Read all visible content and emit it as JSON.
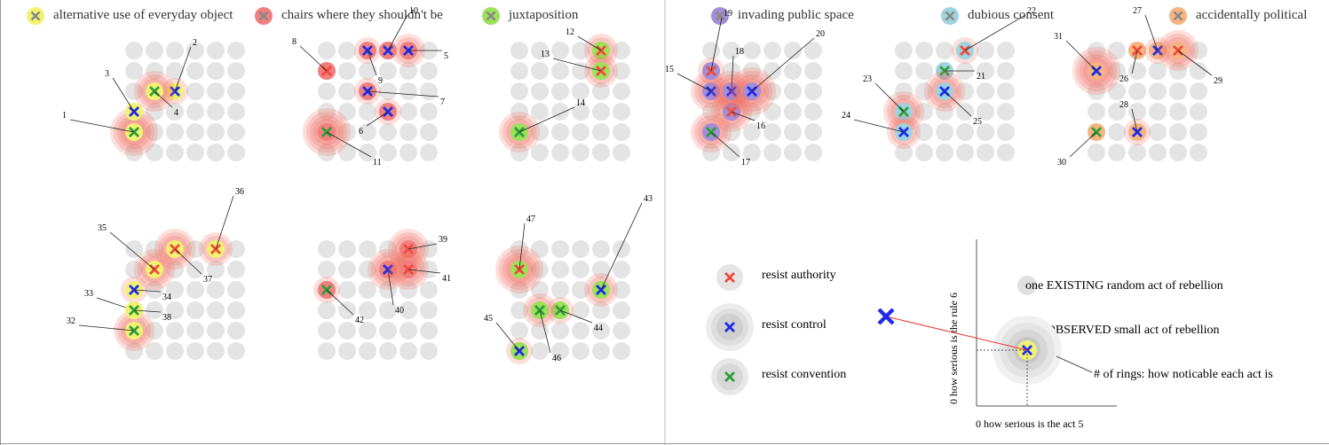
{
  "categories": [
    {
      "key": "everyday",
      "label": "alternative use of everyday object",
      "color": "#f2f272"
    },
    {
      "key": "chairs",
      "label": "chairs where they shouldn't be",
      "color": "#f07f7f"
    },
    {
      "key": "juxta",
      "label": "juxtaposition",
      "color": "#9be15a"
    },
    {
      "key": "invading",
      "label": "invading public space",
      "color": "#a48ed8"
    },
    {
      "key": "consent",
      "label": "dubious consent",
      "color": "#9fd3e0"
    },
    {
      "key": "political",
      "label": "accidentally political",
      "color": "#f5b481"
    }
  ],
  "chart_data": {
    "type": "scatter",
    "x_axis": {
      "label": "0 how serious is the act 5",
      "range": [
        0,
        5
      ]
    },
    "y_axis": {
      "label": "0 how serious is the rule 6",
      "range": [
        0,
        6
      ]
    },
    "types": [
      {
        "key": "authority",
        "label": "resist authority",
        "color": "#f0493a"
      },
      {
        "key": "control",
        "label": "resist control",
        "color": "#1e2ce8"
      },
      {
        "key": "convention",
        "label": "resist convention",
        "color": "#2f9e3a"
      }
    ],
    "points": [
      {
        "id": "1",
        "category": "everyday",
        "type": "convention",
        "x": 0,
        "y": 1,
        "rings": 4
      },
      {
        "id": "2",
        "category": "everyday",
        "type": "control",
        "x": 2,
        "y": 3,
        "rings": 1
      },
      {
        "id": "3",
        "category": "everyday",
        "type": "control",
        "x": 0,
        "y": 2,
        "rings": 0
      },
      {
        "id": "4",
        "category": "everyday",
        "type": "convention",
        "x": 1,
        "y": 3,
        "rings": 3
      },
      {
        "id": "5",
        "category": "chairs",
        "type": "control",
        "x": 4,
        "y": 5,
        "rings": 2
      },
      {
        "id": "6",
        "category": "chairs",
        "type": "control",
        "x": 3,
        "y": 2,
        "rings": 1
      },
      {
        "id": "7",
        "category": "chairs",
        "type": "control",
        "x": 2,
        "y": 3,
        "rings": 1
      },
      {
        "id": "8",
        "category": "chairs",
        "type": "authority",
        "x": 0,
        "y": 4,
        "rings": 0
      },
      {
        "id": "9",
        "category": "chairs",
        "type": "control",
        "x": 2,
        "y": 5,
        "rings": 1
      },
      {
        "id": "10",
        "category": "chairs",
        "type": "control",
        "x": 3,
        "y": 5,
        "rings": 0
      },
      {
        "id": "11",
        "category": "chairs",
        "type": "convention",
        "x": 0,
        "y": 1,
        "rings": 4
      },
      {
        "id": "12",
        "category": "juxta",
        "type": "authority",
        "x": 4,
        "y": 5,
        "rings": 2
      },
      {
        "id": "13",
        "category": "juxta",
        "type": "authority",
        "x": 4,
        "y": 4,
        "rings": 2
      },
      {
        "id": "14",
        "category": "juxta",
        "type": "convention",
        "x": 0,
        "y": 1,
        "rings": 3
      },
      {
        "id": "15",
        "category": "invading",
        "type": "control",
        "x": 0,
        "y": 3,
        "rings": 3
      },
      {
        "id": "16",
        "category": "invading",
        "type": "authority",
        "x": 1,
        "y": 2,
        "rings": 3
      },
      {
        "id": "17",
        "category": "invading",
        "type": "convention",
        "x": 0,
        "y": 1,
        "rings": 3
      },
      {
        "id": "18",
        "category": "invading",
        "type": "control",
        "x": 1,
        "y": 3,
        "rings": 3
      },
      {
        "id": "19",
        "category": "invading",
        "type": "authority",
        "x": 0,
        "y": 4,
        "rings": 1
      },
      {
        "id": "20",
        "category": "invading",
        "type": "control",
        "x": 2,
        "y": 3,
        "rings": 4
      },
      {
        "id": "21",
        "category": "consent",
        "type": "convention",
        "x": 2,
        "y": 4,
        "rings": 0
      },
      {
        "id": "22",
        "category": "consent",
        "type": "authority",
        "x": 3,
        "y": 5,
        "rings": 1
      },
      {
        "id": "23",
        "category": "consent",
        "type": "convention",
        "x": 0,
        "y": 2,
        "rings": 3
      },
      {
        "id": "24",
        "category": "consent",
        "type": "control",
        "x": 0,
        "y": 1,
        "rings": 2
      },
      {
        "id": "25",
        "category": "consent",
        "type": "control",
        "x": 2,
        "y": 3,
        "rings": 3
      },
      {
        "id": "26",
        "category": "political",
        "type": "authority",
        "x": 2,
        "y": 5,
        "rings": 0
      },
      {
        "id": "27",
        "category": "political",
        "type": "control",
        "x": 3,
        "y": 5,
        "rings": 1
      },
      {
        "id": "28",
        "category": "political",
        "type": "control",
        "x": 2,
        "y": 1,
        "rings": 1
      },
      {
        "id": "29",
        "category": "political",
        "type": "authority",
        "x": 4,
        "y": 5,
        "rings": 3
      },
      {
        "id": "30",
        "category": "political",
        "type": "convention",
        "x": 0,
        "y": 1,
        "rings": 0
      },
      {
        "id": "31",
        "category": "political",
        "type": "control",
        "x": 0,
        "y": 4,
        "rings": 4
      },
      {
        "id": "32",
        "category": "everyday",
        "type": "convention",
        "x": 0,
        "y": 1,
        "rings": 3
      },
      {
        "id": "33",
        "category": "everyday",
        "type": "convention",
        "x": 0,
        "y": 2,
        "rings": 0
      },
      {
        "id": "34",
        "category": "everyday",
        "type": "control",
        "x": 0,
        "y": 3,
        "rings": 1
      },
      {
        "id": "35",
        "category": "everyday",
        "type": "authority",
        "x": 1,
        "y": 4,
        "rings": 3
      },
      {
        "id": "36",
        "category": "everyday",
        "type": "authority",
        "x": 4,
        "y": 5,
        "rings": 2
      },
      {
        "id": "37",
        "category": "everyday",
        "type": "authority",
        "x": 2,
        "y": 5,
        "rings": 3
      },
      {
        "id": "38",
        "category": "everyday",
        "type": "convention",
        "x": 0,
        "y": 2,
        "rings": 0
      },
      {
        "id": "39",
        "category": "chairs",
        "type": "authority",
        "x": 4,
        "y": 5,
        "rings": 3
      },
      {
        "id": "40",
        "category": "chairs",
        "type": "control",
        "x": 3,
        "y": 4,
        "rings": 3
      },
      {
        "id": "41",
        "category": "chairs",
        "type": "authority",
        "x": 4,
        "y": 4,
        "rings": 3
      },
      {
        "id": "42",
        "category": "chairs",
        "type": "convention",
        "x": 0,
        "y": 3,
        "rings": 1
      },
      {
        "id": "43",
        "category": "juxta",
        "type": "control",
        "x": 4,
        "y": 3,
        "rings": 2
      },
      {
        "id": "44",
        "category": "juxta",
        "type": "convention",
        "x": 2,
        "y": 2,
        "rings": 1
      },
      {
        "id": "45",
        "category": "juxta",
        "type": "control",
        "x": 0,
        "y": 0,
        "rings": 1
      },
      {
        "id": "46",
        "category": "juxta",
        "type": "convention",
        "x": 1,
        "y": 2,
        "rings": 2
      },
      {
        "id": "47",
        "category": "juxta",
        "type": "authority",
        "x": 0,
        "y": 4,
        "rings": 4
      }
    ]
  },
  "legend": {
    "existing_label": "one EXISTING random act of rebellion",
    "observed_label": "one OBSERVED small act of rebellion",
    "rings_label": "# of rings: how noticable each act is"
  }
}
